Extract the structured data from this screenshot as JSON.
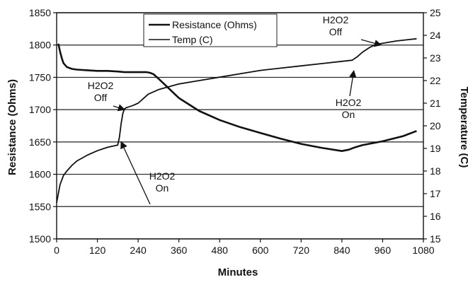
{
  "chart_data": {
    "type": "line",
    "xlabel": "Minutes",
    "ylabel_left": "Resistance (Ohms)",
    "ylabel_right": "Temperature (C)",
    "xlim": [
      0,
      1080
    ],
    "ylim_left": [
      1500,
      1850
    ],
    "ylim_right": [
      15,
      25
    ],
    "x_ticks": [
      "0",
      "120",
      "240",
      "360",
      "480",
      "600",
      "720",
      "840",
      "960",
      "1080"
    ],
    "y_left_ticks": [
      "1500",
      "1550",
      "1600",
      "1650",
      "1700",
      "1750",
      "1800",
      "1850"
    ],
    "y_right_ticks": [
      "15",
      "16",
      "17",
      "18",
      "19",
      "20",
      "21",
      "22",
      "23",
      "24",
      "25"
    ],
    "grid": "horizontal",
    "legend": "top-center",
    "series": [
      {
        "name": "Resistance (Ohms)",
        "axis": "left",
        "x": [
          5,
          10,
          15,
          20,
          30,
          45,
          60,
          90,
          120,
          150,
          180,
          200,
          220,
          240,
          255,
          265,
          275,
          285,
          300,
          330,
          360,
          420,
          480,
          540,
          600,
          660,
          720,
          780,
          840,
          860,
          880,
          900,
          960,
          1020,
          1060
        ],
        "y": [
          1802,
          1790,
          1780,
          1772,
          1766,
          1763,
          1762,
          1761,
          1760,
          1760,
          1759,
          1758,
          1758,
          1758,
          1758,
          1758,
          1757,
          1755,
          1748,
          1733,
          1718,
          1698,
          1684,
          1673,
          1664,
          1655,
          1647,
          1641,
          1636,
          1638,
          1642,
          1645,
          1651,
          1659,
          1667
        ]
      },
      {
        "name": "Temp (C)",
        "axis": "right",
        "x": [
          0,
          5,
          10,
          20,
          30,
          45,
          60,
          90,
          120,
          150,
          180,
          185,
          190,
          195,
          200,
          205,
          215,
          225,
          240,
          255,
          270,
          300,
          360,
          420,
          480,
          540,
          600,
          660,
          720,
          780,
          840,
          870,
          885,
          900,
          920,
          940,
          960,
          1000,
          1030,
          1060
        ],
        "y": [
          16.6,
          17.0,
          17.4,
          17.8,
          18.0,
          18.25,
          18.45,
          18.7,
          18.9,
          19.05,
          19.15,
          19.5,
          20.1,
          20.55,
          20.75,
          20.8,
          20.85,
          20.9,
          21.0,
          21.2,
          21.4,
          21.6,
          21.85,
          22.0,
          22.15,
          22.3,
          22.45,
          22.55,
          22.65,
          22.75,
          22.85,
          22.9,
          23.05,
          23.25,
          23.45,
          23.6,
          23.65,
          23.75,
          23.8,
          23.85
        ]
      }
    ],
    "annotations": [
      {
        "lines": [
          "H2O2",
          "Off"
        ],
        "x": 200,
        "y": 1700
      },
      {
        "lines": [
          "H2O2",
          "On"
        ],
        "x": 190,
        "y": 1650
      },
      {
        "lines": [
          "H2O2",
          "Off"
        ],
        "x": 955,
        "y": 1800
      },
      {
        "lines": [
          "H2O2",
          "On"
        ],
        "x": 875,
        "y": 1760
      }
    ]
  }
}
